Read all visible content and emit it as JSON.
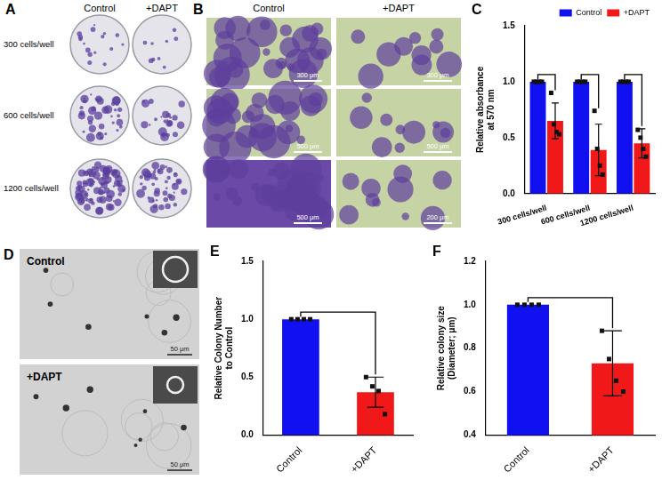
{
  "photo_panels": [
    {
      "panel": "A",
      "columns": [
        "Control",
        "+DAPT"
      ],
      "rows": [
        "300 cells/well",
        "600 cells/well",
        "1200 cells/well"
      ]
    },
    {
      "panel": "B",
      "columns": [
        "Control",
        "+DAPT"
      ],
      "scale_bars": [
        [
          "300 μm",
          "300 μm"
        ],
        [
          "500 μm",
          "500 μm"
        ],
        [
          "500 μm",
          "200 μm"
        ]
      ]
    },
    {
      "panel": "D",
      "rows": [
        "Control",
        "+DAPT"
      ],
      "scale_bars": [
        "50 μm",
        "50 μm"
      ]
    }
  ],
  "chart_data": [
    {
      "panel": "C",
      "type": "bar",
      "ylabel": [
        "Relative absorbance",
        "at 570 nm"
      ],
      "categories": [
        "300 cells/well",
        "600 cells/well",
        "1200 cells/well"
      ],
      "series": [
        {
          "name": "Control",
          "color": "#1010f0",
          "values": [
            1.0,
            1.0,
            1.0
          ],
          "errors": [
            0,
            0,
            0
          ],
          "points": [
            [
              1.0,
              1.0,
              1.0,
              1.0
            ],
            [
              1.0,
              1.0,
              1.0,
              1.0
            ],
            [
              1.0,
              1.0,
              1.0,
              1.0
            ]
          ]
        },
        {
          "name": "+DAPT",
          "color": "#f01818",
          "values": [
            0.65,
            0.39,
            0.45
          ],
          "errors": [
            0.16,
            0.23,
            0.13
          ],
          "points": [
            [
              0.9,
              0.62,
              0.55,
              0.53
            ],
            [
              0.74,
              0.4,
              0.25,
              0.17
            ],
            [
              0.57,
              0.5,
              0.4,
              0.33
            ]
          ]
        }
      ],
      "ylim": [
        0,
        1.5
      ],
      "yticks": [
        {
          "value": 0,
          "label": "0.0"
        },
        {
          "value": 0.5,
          "label": "0.5"
        },
        {
          "value": 1,
          "label": "1.0"
        },
        {
          "value": 1.5,
          "label": "1.5"
        }
      ],
      "grid": false,
      "legend": "top-right",
      "marker": "square"
    },
    {
      "panel": "E",
      "type": "bar",
      "ylabel": [
        "Relative Colony Number",
        "to Control"
      ],
      "categories": [
        "Control",
        "+DAPT"
      ],
      "values": [
        1.0,
        0.37
      ],
      "errors": [
        0,
        0.13
      ],
      "points": [
        [
          1.0,
          1.0,
          1.0,
          1.0
        ],
        [
          0.5,
          0.42,
          0.38,
          0.18
        ]
      ],
      "colors": [
        "#1010f0",
        "#f01818"
      ],
      "ylim": [
        0,
        1.5
      ],
      "yticks": [
        {
          "value": 0,
          "label": "0.0"
        },
        {
          "value": 0.5,
          "label": "0.5"
        },
        {
          "value": 1,
          "label": "1.0"
        },
        {
          "value": 1.5,
          "label": "1.5"
        }
      ],
      "grid": false,
      "marker": "square"
    },
    {
      "panel": "F",
      "type": "bar",
      "ylabel": [
        "Relative colony size",
        "(Diameter; μm)"
      ],
      "categories": [
        "Control",
        "+DAPT"
      ],
      "values": [
        1.0,
        0.73
      ],
      "errors": [
        0,
        0.15
      ],
      "points": [
        [
          1.0,
          1.0,
          1.0,
          1.0
        ],
        [
          0.88,
          0.75,
          0.65,
          0.6
        ]
      ],
      "colors": [
        "#1010f0",
        "#f01818"
      ],
      "ylim": [
        0.4,
        1.2
      ],
      "yticks": [
        {
          "value": 0.4,
          "label": "0.4"
        },
        {
          "value": 0.6,
          "label": "0.6"
        },
        {
          "value": 0.8,
          "label": "0.8"
        },
        {
          "value": 1,
          "label": "1.0"
        },
        {
          "value": 1.2,
          "label": "1.2"
        }
      ],
      "grid": false,
      "marker": "square"
    }
  ]
}
